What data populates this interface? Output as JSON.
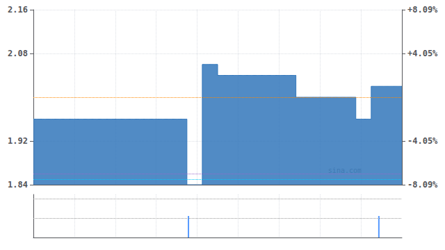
{
  "chart_data": [
    {
      "type": "step",
      "color": "#3377bb",
      "tick_labels": "y",
      "grid": true,
      "annotations": [
        "sina.com"
      ],
      "reference_lines": [
        {
          "value": 2.0,
          "color": "#ff8800"
        },
        {
          "value": 1.853,
          "color": "#00ccff"
        },
        {
          "value": 1.858,
          "color": "#9966cc"
        }
      ],
      "xlim": [
        0,
        240
      ],
      "xticks": [
        26.666666666666668,
        53.333333333333336,
        80.0,
        106.66666666666667,
        133.33333333333334,
        160.0,
        186.66666666666666,
        213.33333333333334
      ],
      "ylim": [
        1.84,
        2.16
      ],
      "yticks": [
        2.16,
        2.08,
        1.92,
        1.84
      ],
      "y2lim": [
        -8.09,
        8.09
      ],
      "y2ticks": [
        {
          "value": 8.09,
          "label": "+8.09%"
        },
        {
          "value": 4.05,
          "label": "+4.05%"
        },
        {
          "value": -4.05,
          "label": "-4.05%"
        },
        {
          "value": -8.09,
          "label": "-8.09%"
        }
      ],
      "x": [
        0,
        1,
        2,
        3,
        4,
        5,
        6,
        7,
        8,
        9,
        10,
        11,
        12,
        13,
        14,
        15,
        16,
        17,
        18,
        19,
        20,
        21,
        22,
        23,
        24,
        25,
        26,
        27,
        28,
        29,
        30,
        31,
        32,
        33,
        34,
        35,
        36,
        37,
        38,
        39,
        40,
        41,
        42,
        43,
        44,
        45,
        46,
        47,
        48,
        49,
        50,
        51,
        52,
        53,
        54,
        55,
        56,
        57,
        58,
        59,
        60,
        61,
        62,
        63,
        64,
        65,
        66,
        67,
        68,
        69,
        70,
        71,
        72,
        73,
        74,
        75,
        76,
        77,
        78,
        79,
        80,
        81,
        82,
        83,
        84,
        85,
        86,
        87,
        88,
        89,
        90,
        91,
        92,
        93,
        94,
        95,
        96,
        97,
        98,
        99,
        100,
        101,
        102,
        103,
        104,
        105,
        106,
        107,
        108,
        109,
        110,
        111,
        112,
        113,
        114,
        115,
        116,
        117,
        118,
        119,
        120,
        121,
        122,
        123,
        124,
        125,
        126,
        127,
        128,
        129,
        130,
        131,
        132,
        133,
        134,
        135,
        136,
        137,
        138,
        139,
        140,
        141,
        142,
        143,
        144,
        145,
        146,
        147,
        148,
        149,
        150,
        151,
        152,
        153,
        154,
        155,
        156,
        157,
        158,
        159,
        160,
        161,
        162,
        163,
        164,
        165,
        166,
        167,
        168,
        169,
        170,
        171,
        172,
        173,
        174,
        175,
        176,
        177,
        178,
        179,
        180,
        181,
        182,
        183,
        184,
        185,
        186,
        187,
        188,
        189,
        190,
        191,
        192,
        193,
        194,
        195,
        196,
        197,
        198,
        199,
        200,
        201,
        202,
        203,
        204,
        205,
        206,
        207,
        208,
        209,
        210,
        211,
        212,
        213,
        214,
        215,
        216,
        217,
        218,
        219,
        220,
        221,
        222,
        223,
        224,
        225,
        226,
        227,
        228,
        229,
        230,
        231,
        232,
        233,
        234,
        235,
        236,
        237,
        238,
        239,
        240
      ],
      "values": [
        1.96,
        1.96,
        1.96,
        1.96,
        1.96,
        1.96,
        1.96,
        1.96,
        1.96,
        1.96,
        1.96,
        1.96,
        1.96,
        1.96,
        1.96,
        1.96,
        1.96,
        1.96,
        1.96,
        1.96,
        1.96,
        1.96,
        1.96,
        1.96,
        1.96,
        1.96,
        1.96,
        1.96,
        1.96,
        1.96,
        1.96,
        1.96,
        1.96,
        1.96,
        1.96,
        1.96,
        1.96,
        1.96,
        1.96,
        1.96,
        1.96,
        1.96,
        1.96,
        1.96,
        1.96,
        1.96,
        1.96,
        1.96,
        1.96,
        1.96,
        1.96,
        1.96,
        1.96,
        1.96,
        1.96,
        1.96,
        1.96,
        1.96,
        1.96,
        1.96,
        1.96,
        1.96,
        1.96,
        1.96,
        1.96,
        1.96,
        1.96,
        1.96,
        1.96,
        1.96,
        1.96,
        1.96,
        1.96,
        1.96,
        1.96,
        1.96,
        1.96,
        1.96,
        1.96,
        1.96,
        1.96,
        1.96,
        1.96,
        1.96,
        1.96,
        1.96,
        1.96,
        1.96,
        1.96,
        1.96,
        1.96,
        1.96,
        1.96,
        1.96,
        1.96,
        1.96,
        1.96,
        1.96,
        1.96,
        1.96,
        1.84,
        1.84,
        1.84,
        1.84,
        1.84,
        1.84,
        1.84,
        1.84,
        1.84,
        1.84,
        2.06,
        2.06,
        2.06,
        2.06,
        2.06,
        2.06,
        2.06,
        2.06,
        2.06,
        2.06,
        2.04,
        2.04,
        2.04,
        2.04,
        2.04,
        2.04,
        2.04,
        2.04,
        2.04,
        2.04,
        2.04,
        2.04,
        2.04,
        2.04,
        2.04,
        2.04,
        2.04,
        2.04,
        2.04,
        2.04,
        2.04,
        2.04,
        2.04,
        2.04,
        2.04,
        2.04,
        2.04,
        2.04,
        2.04,
        2.04,
        2.04,
        2.04,
        2.04,
        2.04,
        2.04,
        2.04,
        2.04,
        2.04,
        2.04,
        2.04,
        2.04,
        2.04,
        2.04,
        2.04,
        2.04,
        2.04,
        2.04,
        2.04,
        2.04,
        2.04,
        2.04,
        2.0,
        2.0,
        2.0,
        2.0,
        2.0,
        2.0,
        2.0,
        2.0,
        2.0,
        2.0,
        2.0,
        2.0,
        2.0,
        2.0,
        2.0,
        2.0,
        2.0,
        2.0,
        2.0,
        2.0,
        2.0,
        2.0,
        2.0,
        2.0,
        2.0,
        2.0,
        2.0,
        2.0,
        2.0,
        2.0,
        2.0,
        2.0,
        2.0,
        2.0,
        2.0,
        2.0,
        2.0,
        2.0,
        2.0,
        1.96,
        1.96,
        1.96,
        1.96,
        1.96,
        1.96,
        1.96,
        1.96,
        1.96,
        1.96,
        2.02,
        2.02,
        2.02,
        2.02,
        2.02,
        2.02,
        2.02,
        2.02,
        2.02,
        2.02,
        2.02,
        2.02,
        2.02,
        2.02,
        2.02,
        2.02,
        2.02,
        2.02,
        2.02,
        2.02,
        2.02
      ]
    },
    {
      "type": "bar",
      "color": "#5599ff",
      "tick_labels": false,
      "grid": true,
      "reference_lines": [
        {
          "value": 1.8,
          "color": "#ffffff"
        },
        {
          "value": 0.9,
          "color": "#ffffff"
        }
      ],
      "xlim": [
        0,
        240
      ],
      "xticks": [
        26.666666666666668,
        53.333333333333336,
        80.0,
        106.66666666666667,
        133.33333333333334,
        160.0,
        186.66666666666666,
        213.33333333333334
      ],
      "ylim": [
        0,
        2.0
      ],
      "x": [
        0,
        1,
        2,
        3,
        4,
        5,
        6,
        7,
        8,
        9,
        10,
        11,
        12,
        13,
        14,
        15,
        16,
        17,
        18,
        19,
        20,
        21,
        22,
        23,
        24,
        25,
        26,
        27,
        28,
        29,
        30,
        31,
        32,
        33,
        34,
        35,
        36,
        37,
        38,
        39,
        40,
        41,
        42,
        43,
        44,
        45,
        46,
        47,
        48,
        49,
        50,
        51,
        52,
        53,
        54,
        55,
        56,
        57,
        58,
        59,
        60,
        61,
        62,
        63,
        64,
        65,
        66,
        67,
        68,
        69,
        70,
        71,
        72,
        73,
        74,
        75,
        76,
        77,
        78,
        79,
        80,
        81,
        82,
        83,
        84,
        85,
        86,
        87,
        88,
        89,
        90,
        91,
        92,
        93,
        94,
        95,
        96,
        97,
        98,
        99,
        100,
        101,
        102,
        103,
        104,
        105,
        106,
        107,
        108,
        109,
        110,
        111,
        112,
        113,
        114,
        115,
        116,
        117,
        118,
        119,
        120,
        121,
        122,
        123,
        124,
        125,
        126,
        127,
        128,
        129,
        130,
        131,
        132,
        133,
        134,
        135,
        136,
        137,
        138,
        139,
        140,
        141,
        142,
        143,
        144,
        145,
        146,
        147,
        148,
        149,
        150,
        151,
        152,
        153,
        154,
        155,
        156,
        157,
        158,
        159,
        160,
        161,
        162,
        163,
        164,
        165,
        166,
        167,
        168,
        169,
        170,
        171,
        172,
        173,
        174,
        175,
        176,
        177,
        178,
        179,
        180,
        181,
        182,
        183,
        184,
        185,
        186,
        187,
        188,
        189,
        190,
        191,
        192,
        193,
        194,
        195,
        196,
        197,
        198,
        199,
        200,
        201,
        202,
        203,
        204,
        205,
        206,
        207,
        208,
        209,
        210,
        211,
        212,
        213,
        214,
        215,
        216,
        217,
        218,
        219,
        220,
        221,
        222,
        223,
        224,
        225,
        226,
        227,
        228,
        229,
        230,
        231,
        232,
        233,
        234,
        235,
        236,
        237,
        238,
        239,
        240
      ],
      "values": [
        0,
        0,
        0,
        0,
        0,
        0,
        0,
        0,
        0,
        0,
        0,
        0,
        0,
        0,
        0,
        0,
        0,
        0,
        0,
        0,
        0,
        0,
        0,
        0,
        0,
        0,
        0,
        0,
        0,
        0,
        0,
        0,
        0,
        0,
        0,
        0,
        0,
        0,
        0,
        0,
        0,
        0,
        0,
        0,
        0,
        0,
        0,
        0,
        0,
        0,
        0,
        0,
        0,
        0,
        0,
        0,
        0,
        0,
        0,
        0,
        0,
        0,
        0,
        0,
        0,
        0,
        0,
        0,
        0,
        0,
        0,
        0,
        0,
        0,
        0,
        0,
        0,
        0,
        0,
        0,
        0,
        0,
        0,
        0,
        0,
        0,
        0,
        0,
        0,
        0,
        0,
        0,
        0,
        0,
        0,
        0,
        0,
        0,
        0,
        0,
        0,
        1.0,
        0,
        0,
        0,
        0,
        0,
        0,
        0,
        0,
        0,
        0,
        0,
        0,
        0,
        0,
        0,
        0,
        0,
        0,
        0,
        0,
        0,
        0,
        0,
        0,
        0,
        0,
        0,
        0,
        0,
        0,
        0,
        0,
        0,
        0,
        0,
        0,
        0,
        0,
        0,
        0,
        0,
        0,
        0,
        0,
        0,
        0,
        0,
        0,
        0,
        0,
        0,
        0,
        0,
        0,
        0,
        0,
        0,
        0,
        0,
        0,
        0,
        0,
        0,
        0,
        0,
        0,
        0,
        0,
        0,
        0,
        0,
        0,
        0,
        0,
        0,
        0,
        0,
        0,
        0,
        0,
        0,
        0,
        0,
        0,
        0,
        0,
        0,
        0,
        0,
        0,
        0,
        0,
        0,
        0,
        0,
        0,
        0,
        0,
        0,
        0,
        0,
        0,
        0,
        0,
        0,
        0,
        0,
        0,
        0,
        0,
        0,
        0,
        0,
        0,
        0,
        0,
        0,
        0,
        0,
        0,
        0,
        0,
        0,
        1.0,
        0,
        0,
        0,
        0,
        0,
        0,
        0,
        0,
        0,
        0,
        0,
        0,
        0,
        0,
        0
      ]
    }
  ]
}
